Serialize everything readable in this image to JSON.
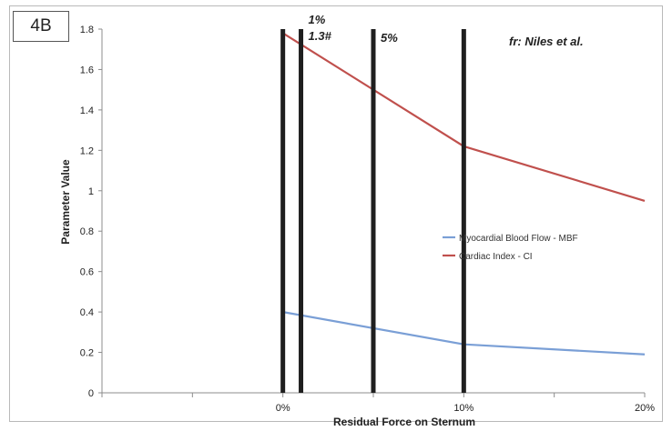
{
  "figure_label": "4B",
  "colors": {
    "mbf": "#7a9fd6",
    "ci": "#c0504d",
    "marker": "#1f1f1f",
    "axis": "#8c8c8c"
  },
  "chart_data": {
    "type": "line",
    "title": "",
    "xlabel": "Residual Force on Sternum",
    "ylabel": "Parameter Value",
    "x": [
      0,
      10,
      20
    ],
    "xlim": [
      -10,
      20
    ],
    "x_ticks": [
      {
        "value": 0,
        "label": "0%"
      },
      {
        "value": 10,
        "label": "10%"
      },
      {
        "value": 20,
        "label": "20%"
      }
    ],
    "ylim": [
      0,
      1.8
    ],
    "y_ticks": [
      {
        "value": 0,
        "label": "0"
      },
      {
        "value": 0.2,
        "label": "0.2"
      },
      {
        "value": 0.4,
        "label": "0.4"
      },
      {
        "value": 0.6,
        "label": "0.6"
      },
      {
        "value": 0.8,
        "label": "0.8"
      },
      {
        "value": 1.0,
        "label": "1"
      },
      {
        "value": 1.2,
        "label": "1.2"
      },
      {
        "value": 1.4,
        "label": "1.4"
      },
      {
        "value": 1.6,
        "label": "1.6"
      },
      {
        "value": 1.8,
        "label": "1.8"
      }
    ],
    "grid": false,
    "legend_position": "right",
    "series": [
      {
        "name": "Myocardial Blood Flow - MBF",
        "color": "#7a9fd6",
        "points": [
          [
            0,
            0.4
          ],
          [
            10,
            0.24
          ],
          [
            20,
            0.19
          ]
        ]
      },
      {
        "name": "Cardiac Index - CI",
        "color": "#c0504d",
        "points": [
          [
            0,
            1.78
          ],
          [
            10,
            1.22
          ],
          [
            20,
            0.95
          ]
        ]
      }
    ],
    "vertical_markers": [
      0,
      1,
      5,
      10
    ],
    "annotations": [
      {
        "text": "1%",
        "x": 1,
        "y": 1.8
      },
      {
        "text": "1.3#",
        "x": 1,
        "y": 1.7
      },
      {
        "text": "5%",
        "x": 5,
        "y": 1.75
      },
      {
        "text": "fr: Niles et al.",
        "x": 12.5,
        "y": 1.75
      }
    ]
  }
}
